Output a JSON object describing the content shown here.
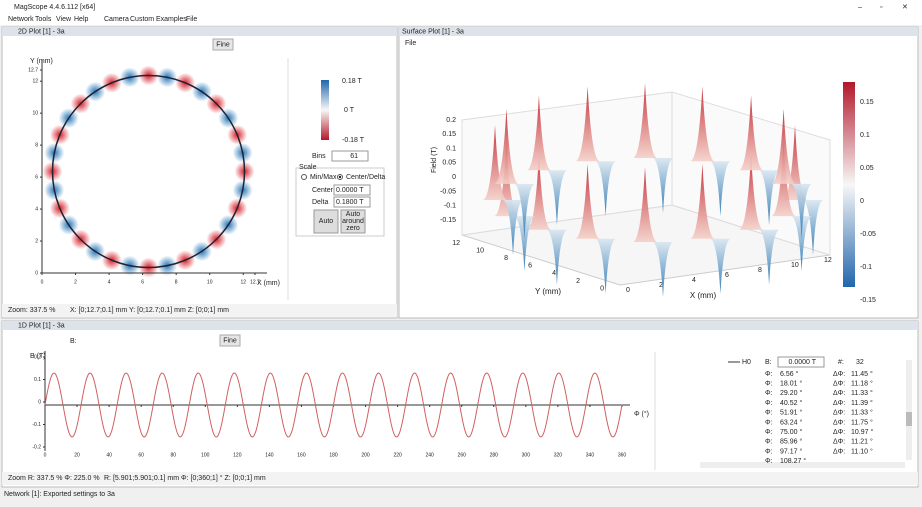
{
  "window": {
    "title": "MagScope 4.4.6.112 [x64]"
  },
  "menu": [
    "Network",
    "Tools",
    "View",
    "Help",
    "Camera",
    "Custom",
    "Examples",
    "File"
  ],
  "plot2d": {
    "title": "2D Plot [1] - 3a",
    "fine": "Fine",
    "y_unit": "Y (mm)",
    "x_unit": "X (mm)",
    "lim": [
      0,
      12.7
    ],
    "ticks": [
      0,
      2,
      4,
      6,
      8,
      10,
      12,
      12.7
    ],
    "colorbar": [
      "0.18 T",
      "0 T",
      "-0.18 T"
    ],
    "bins_label": "Bins",
    "bins": "61",
    "scale": "Scale",
    "minmax": "Min/Max",
    "centerdelta": "Center/Delta",
    "center_label": "Center",
    "center": "0.0000 T",
    "delta_label": "Delta",
    "delta": "0.1800 T",
    "auto": "Auto",
    "auto_zero": [
      "Auto",
      "around",
      "zero"
    ],
    "status": [
      "Zoom: 337.5 %",
      "X: [0;12.7;0.1] mm Y: [0;12.7;0.1] mm Z: [0;0;1] mm"
    ]
  },
  "surface": {
    "title": "Surface Plot [1] - 3a",
    "file": "File",
    "zlabel": "Field (T)",
    "zticks": [
      0.2,
      0.15,
      0.1,
      0.05,
      0,
      -0.05,
      -0.1,
      -0.15
    ],
    "ylabel": "Y (mm)",
    "xlabel": "X (mm)",
    "yticks": [
      12,
      10,
      8,
      6,
      4,
      2,
      0
    ],
    "xticks": [
      0,
      2,
      4,
      6,
      8,
      10,
      12
    ],
    "colorbar": [
      0.15,
      0.1,
      0.05,
      0,
      -0.05,
      -0.1,
      -0.15
    ]
  },
  "plot1d": {
    "title": "1D Plot [1] - 3a",
    "fine": "Fine",
    "b_label": "B:",
    "y_unit": "B (T)",
    "x_unit": "Φ (°)",
    "ylim": [
      -0.2,
      0.2
    ],
    "yticks": [
      0.2,
      0.1,
      0,
      -0.1,
      -0.2
    ],
    "xlim": [
      0,
      360
    ],
    "xticks": [
      0,
      20,
      40,
      60,
      80,
      100,
      120,
      140,
      160,
      180,
      200,
      220,
      240,
      260,
      280,
      300,
      320,
      340,
      360
    ],
    "status": [
      "Zoom R: 337.5 % Φ: 225.0 %",
      "R: [5.901;5.901;0.1] mm Φ: [0;360;1] ° Z: [0;0;1] mm"
    ],
    "table": {
      "legend": "H0",
      "b_label": "B:",
      "b_value": "0.0000 T",
      "count_label": "#:",
      "count": "32",
      "phi_label": "Φ:",
      "dphi_label": "ΔΦ:",
      "phi": [
        "6.56 °",
        "18.01 °",
        "29.20 °",
        "40.52 °",
        "51.91 °",
        "63.24 °",
        "75.00 °",
        "85.96 °",
        "97.17 °",
        "108.27 °"
      ],
      "dphi": [
        "11.45 °",
        "11.18 °",
        "11.33 °",
        "11.39 °",
        "11.33 °",
        "11.75 °",
        "10.97 °",
        "11.21 °",
        "11.10 °"
      ]
    }
  },
  "status": "Network [1]: Exported settings to 3a"
}
